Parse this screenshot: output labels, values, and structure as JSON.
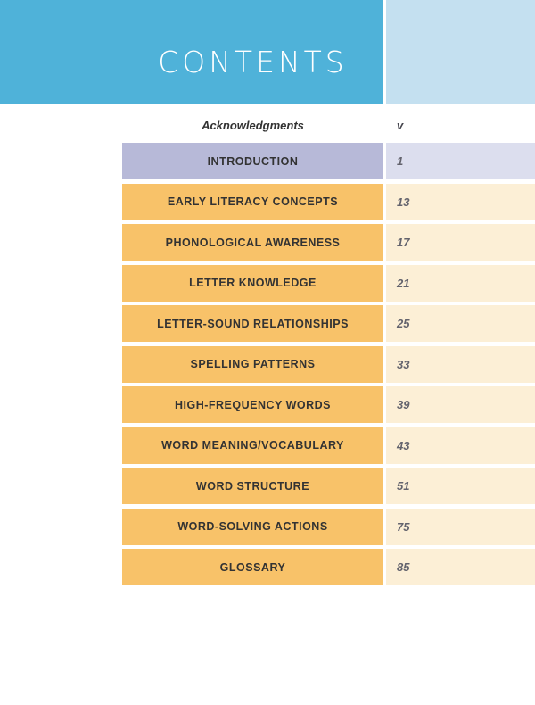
{
  "page": {
    "title": "CONTENTS"
  },
  "front_matter": {
    "label": "Acknowledgments",
    "page": "v"
  },
  "toc": {
    "rows": [
      {
        "label": "INTRODUCTION",
        "page": "1"
      },
      {
        "label": "EARLY LITERACY CONCEPTS",
        "page": "13"
      },
      {
        "label": "PHONOLOGICAL AWARENESS",
        "page": "17"
      },
      {
        "label": "LETTER KNOWLEDGE",
        "page": "21"
      },
      {
        "label": "LETTER-SOUND RELATIONSHIPS",
        "page": "25"
      },
      {
        "label": "SPELLING PATTERNS",
        "page": "33"
      },
      {
        "label": "HIGH-FREQUENCY WORDS",
        "page": "39"
      },
      {
        "label": "WORD MEANING/VOCABULARY",
        "page": "43"
      },
      {
        "label": "WORD STRUCTURE",
        "page": "51"
      },
      {
        "label": "WORD-SOLVING ACTIONS",
        "page": "75"
      },
      {
        "label": "GLOSSARY",
        "page": "85"
      }
    ]
  },
  "colors": {
    "header_blue": "#4fb2d9",
    "header_light_blue": "#c4e0f0",
    "intro_bar": "#b7b9d8",
    "intro_page_box": "#dcdeee",
    "chapter_bar": "#f8c269",
    "chapter_page_box": "#fcefd6",
    "label_text": "#333333",
    "page_number_text": "#63636d",
    "title_text": "#ffffff"
  }
}
